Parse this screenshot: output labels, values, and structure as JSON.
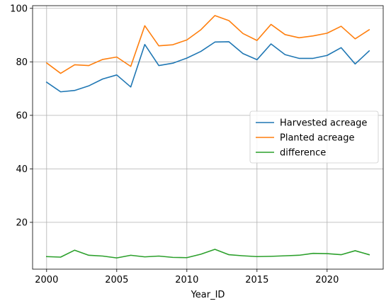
{
  "chart_data": {
    "type": "line",
    "title": "",
    "xlabel": "Year_ID",
    "ylabel": "",
    "x": [
      2000,
      2001,
      2002,
      2003,
      2004,
      2005,
      2006,
      2007,
      2008,
      2009,
      2010,
      2011,
      2012,
      2013,
      2014,
      2015,
      2016,
      2017,
      2018,
      2019,
      2020,
      2021,
      2022,
      2023
    ],
    "xlim": [
      1999,
      2024
    ],
    "ylim": [
      2.5,
      101
    ],
    "xticks": [
      2000,
      2005,
      2010,
      2015,
      2020
    ],
    "yticks": [
      20,
      40,
      60,
      80,
      100
    ],
    "xtick_labels": [
      "2000",
      "2005",
      "2010",
      "2015",
      "2020"
    ],
    "ytick_labels": [
      "20",
      "40",
      "60",
      "80",
      "100"
    ],
    "grid": true,
    "legend_position": "center-right",
    "series": [
      {
        "name": "Harvested acreage",
        "color": "#1f77b4",
        "values": [
          72.4,
          68.8,
          69.3,
          71.0,
          73.6,
          75.1,
          70.6,
          86.5,
          78.6,
          79.5,
          81.4,
          83.9,
          87.4,
          87.5,
          83.1,
          80.8,
          86.7,
          82.7,
          81.3,
          81.3,
          82.4,
          85.3,
          79.2,
          84.1
        ]
      },
      {
        "name": "Planted acreage",
        "color": "#ff7f0e",
        "values": [
          79.6,
          75.7,
          78.9,
          78.6,
          80.9,
          81.8,
          78.3,
          93.5,
          86.0,
          86.4,
          88.2,
          92.0,
          97.3,
          95.4,
          90.6,
          88.0,
          94.0,
          90.2,
          89.0,
          89.7,
          90.7,
          93.3,
          88.6,
          92.0
        ]
      },
      {
        "name": "difference",
        "color": "#2ca02c",
        "values": [
          7.2,
          7.0,
          9.6,
          7.7,
          7.4,
          6.7,
          7.7,
          7.1,
          7.4,
          6.9,
          6.8,
          8.1,
          9.9,
          7.9,
          7.5,
          7.2,
          7.3,
          7.5,
          7.7,
          8.4,
          8.3,
          7.9,
          9.4,
          7.9
        ]
      }
    ]
  }
}
